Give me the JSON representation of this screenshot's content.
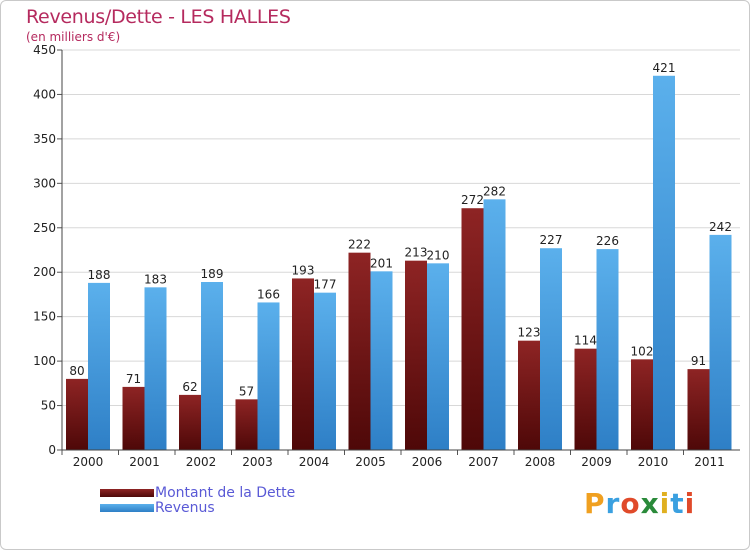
{
  "chart_data": {
    "type": "bar",
    "title": "Revenus/Dette - LES HALLES",
    "subtitle": "(en milliers d'€)",
    "categories": [
      "2000",
      "2001",
      "2002",
      "2003",
      "2004",
      "2005",
      "2006",
      "2007",
      "2008",
      "2009",
      "2010",
      "2011"
    ],
    "series": [
      {
        "name": "Montant de la Dette",
        "color": "#8b1d1d",
        "values": [
          80,
          71,
          62,
          57,
          193,
          222,
          213,
          272,
          123,
          114,
          102,
          91
        ]
      },
      {
        "name": "Revenus",
        "color": "#4aa3e6",
        "values": [
          188,
          183,
          189,
          166,
          177,
          201,
          210,
          282,
          227,
          226,
          421,
          242
        ]
      }
    ],
    "ylim": [
      0,
      450
    ],
    "yticks": [
      0,
      50,
      100,
      150,
      200,
      250,
      300,
      350,
      400,
      450
    ],
    "grid": true,
    "legend_position": "bottom-left"
  },
  "logo": {
    "letters": [
      "P",
      "r",
      "o",
      "x",
      "i",
      "t",
      "i"
    ],
    "colors": [
      "#f0a020",
      "#3aa0e0",
      "#e04a2a",
      "#2a8a3a",
      "#e0b020",
      "#3aa0e0",
      "#e04a2a"
    ]
  }
}
